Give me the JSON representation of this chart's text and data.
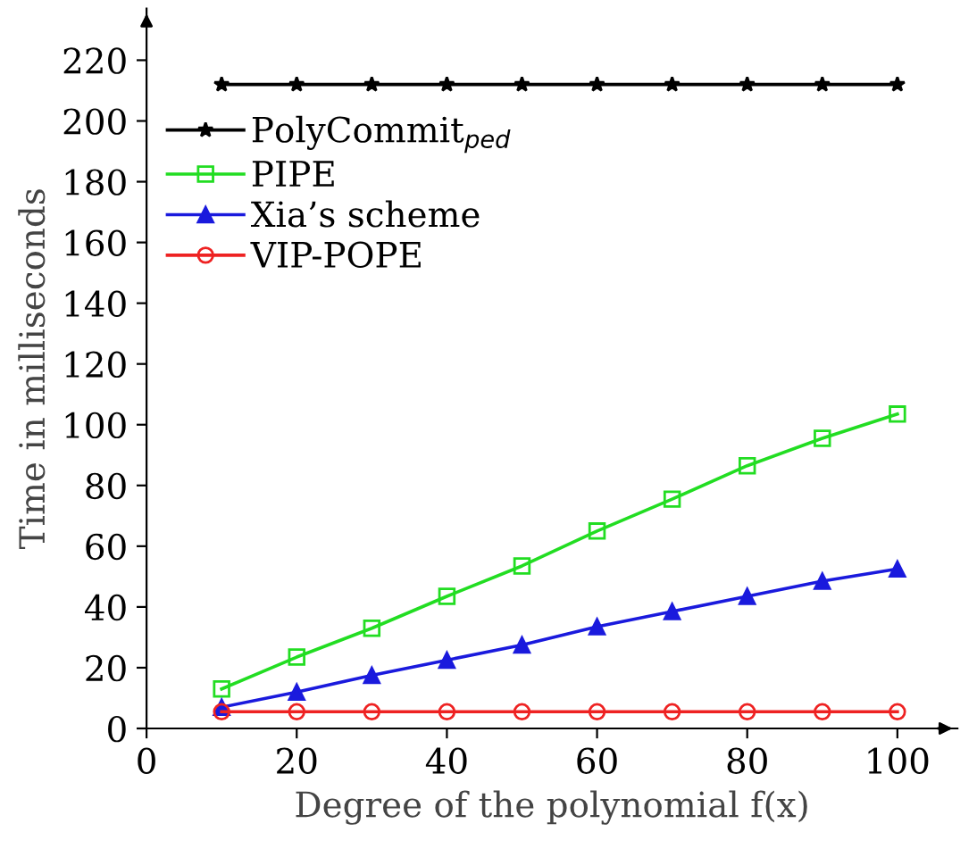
{
  "chart_data": {
    "type": "line",
    "xlabel": "Degree of the polynomial f(x)",
    "ylabel": "Time in milliseconds",
    "x": [
      10,
      20,
      30,
      40,
      50,
      60,
      70,
      80,
      90,
      100
    ],
    "series": [
      {
        "name": "PolyCommit$_{ped}$",
        "color": "#000000",
        "marker": "star",
        "values": [
          212,
          212,
          212,
          212,
          212,
          212,
          212,
          212,
          212,
          212
        ]
      },
      {
        "name": "PIPE",
        "color": "#22dd22",
        "marker": "square",
        "values": [
          13,
          23.5,
          33,
          43.5,
          53.5,
          65,
          75.5,
          86.5,
          95.5,
          103.5
        ]
      },
      {
        "name": "Xia’s scheme",
        "color": "#1a1add",
        "marker": "triangle",
        "values": [
          7,
          12,
          17.5,
          22.5,
          27.5,
          33.5,
          38.5,
          43.5,
          48.5,
          52.5
        ]
      },
      {
        "name": "VIP-POPE",
        "color": "#ee2222",
        "marker": "circle",
        "values": [
          5.5,
          5.5,
          5.5,
          5.5,
          5.5,
          5.5,
          5.5,
          5.5,
          5.5,
          5.5
        ]
      }
    ],
    "xlim": [
      0,
      108
    ],
    "ylim": [
      0,
      237
    ],
    "xticks": [
      0,
      20,
      40,
      60,
      80,
      100
    ],
    "yticks": [
      0,
      20,
      40,
      60,
      80,
      100,
      120,
      140,
      160,
      180,
      200,
      220
    ],
    "grid": false,
    "legend": "top left",
    "line_style": "solid"
  }
}
